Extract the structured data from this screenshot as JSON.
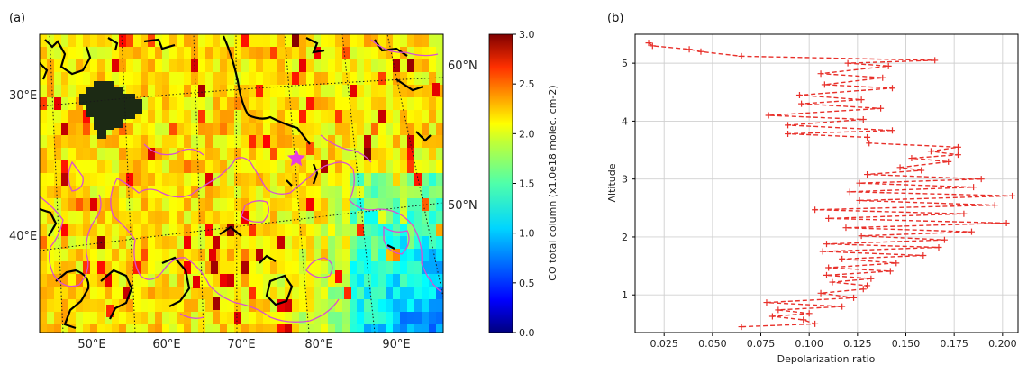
{
  "panel_a": {
    "label": "(a)",
    "longitude_labels": [
      "50°E",
      "60°E",
      "70°E",
      "80°E",
      "90°E"
    ],
    "latitude_labels_left": [
      "30°E",
      "40°E"
    ],
    "latitude_labels_right": [
      "60°N",
      "50°N"
    ],
    "marker": "star",
    "marker_color": "#e63ee0",
    "contour_color": "#d94fd2",
    "coast_color": "#000000",
    "colorbar": {
      "label": "CO total column (x1.0e18 molec. cm-2)",
      "ticks": [
        "0.0",
        "0.5",
        "1.0",
        "1.5",
        "2.0",
        "2.5",
        "3.0"
      ],
      "range": [
        0.0,
        3.0
      ],
      "colormap": "jet"
    }
  },
  "panel_b": {
    "label": "(b)"
  },
  "chart_data": [
    {
      "type": "heatmap",
      "description_key": "CO total column map",
      "vmin": 0.0,
      "vmax": 3.0,
      "colorbar_label": "CO total column (x1.0e18 molec. cm-2)",
      "colorbar_ticks": [
        0.0,
        0.5,
        1.0,
        1.5,
        2.0,
        2.5,
        3.0
      ],
      "xtick_labels": [
        "50°E",
        "60°E",
        "70°E",
        "80°E",
        "90°E"
      ],
      "ytick_labels_left": [
        "30°E",
        "40°E"
      ],
      "ytick_labels_right": [
        "60°N",
        "50°N"
      ]
    },
    {
      "type": "line",
      "title": "",
      "xlabel": "Depolarization ratio",
      "ylabel": "Altitude",
      "xlim": [
        0.01,
        0.208
      ],
      "ylim": [
        0.35,
        5.5
      ],
      "xticks": [
        0.025,
        0.05,
        0.075,
        0.1,
        0.125,
        0.15,
        0.175,
        0.2
      ],
      "xtick_labels": [
        "0.025",
        "0.050",
        "0.075",
        "0.100",
        "0.125",
        "0.150",
        "0.175",
        "0.200"
      ],
      "yticks": [
        1,
        2,
        3,
        4,
        5
      ],
      "ytick_labels": [
        "1",
        "2",
        "3",
        "4",
        "5"
      ],
      "grid": true,
      "line_color": "#e8302a",
      "line_style": "dashed",
      "marker": "+",
      "series": [
        {
          "x": [
            0.065,
            0.103,
            0.097,
            0.081,
            0.1,
            0.084,
            0.117,
            0.078,
            0.123,
            0.106,
            0.128,
            0.13,
            0.112,
            0.132,
            0.109,
            0.142,
            0.11,
            0.145,
            0.117,
            0.159,
            0.107,
            0.167,
            0.109,
            0.17,
            0.127,
            0.184,
            0.119,
            0.202,
            0.11,
            0.18,
            0.103,
            0.196,
            0.126,
            0.205,
            0.121,
            0.185,
            0.126,
            0.189,
            0.13,
            0.158,
            0.147,
            0.172,
            0.153,
            0.177,
            0.163,
            0.177,
            0.131,
            0.13,
            0.089,
            0.143,
            0.089,
            0.128,
            0.079,
            0.137,
            0.096,
            0.127,
            0.095,
            0.143,
            0.108,
            0.138,
            0.106,
            0.141,
            0.12,
            0.165,
            0.065,
            0.044,
            0.038,
            0.019,
            0.017
          ],
          "y": [
            0.45,
            0.5,
            0.57,
            0.63,
            0.68,
            0.74,
            0.8,
            0.87,
            0.95,
            1.03,
            1.1,
            1.16,
            1.22,
            1.28,
            1.34,
            1.41,
            1.47,
            1.55,
            1.62,
            1.68,
            1.75,
            1.82,
            1.88,
            1.95,
            2.02,
            2.09,
            2.16,
            2.24,
            2.32,
            2.4,
            2.47,
            2.55,
            2.63,
            2.71,
            2.78,
            2.86,
            2.93,
            3.0,
            3.08,
            3.15,
            3.2,
            3.3,
            3.36,
            3.42,
            3.48,
            3.55,
            3.62,
            3.72,
            3.78,
            3.84,
            3.93,
            4.03,
            4.1,
            4.22,
            4.3,
            4.37,
            4.45,
            4.57,
            4.63,
            4.75,
            4.82,
            4.95,
            5.0,
            5.05,
            5.12,
            5.2,
            5.24,
            5.3,
            5.35
          ]
        }
      ]
    }
  ]
}
